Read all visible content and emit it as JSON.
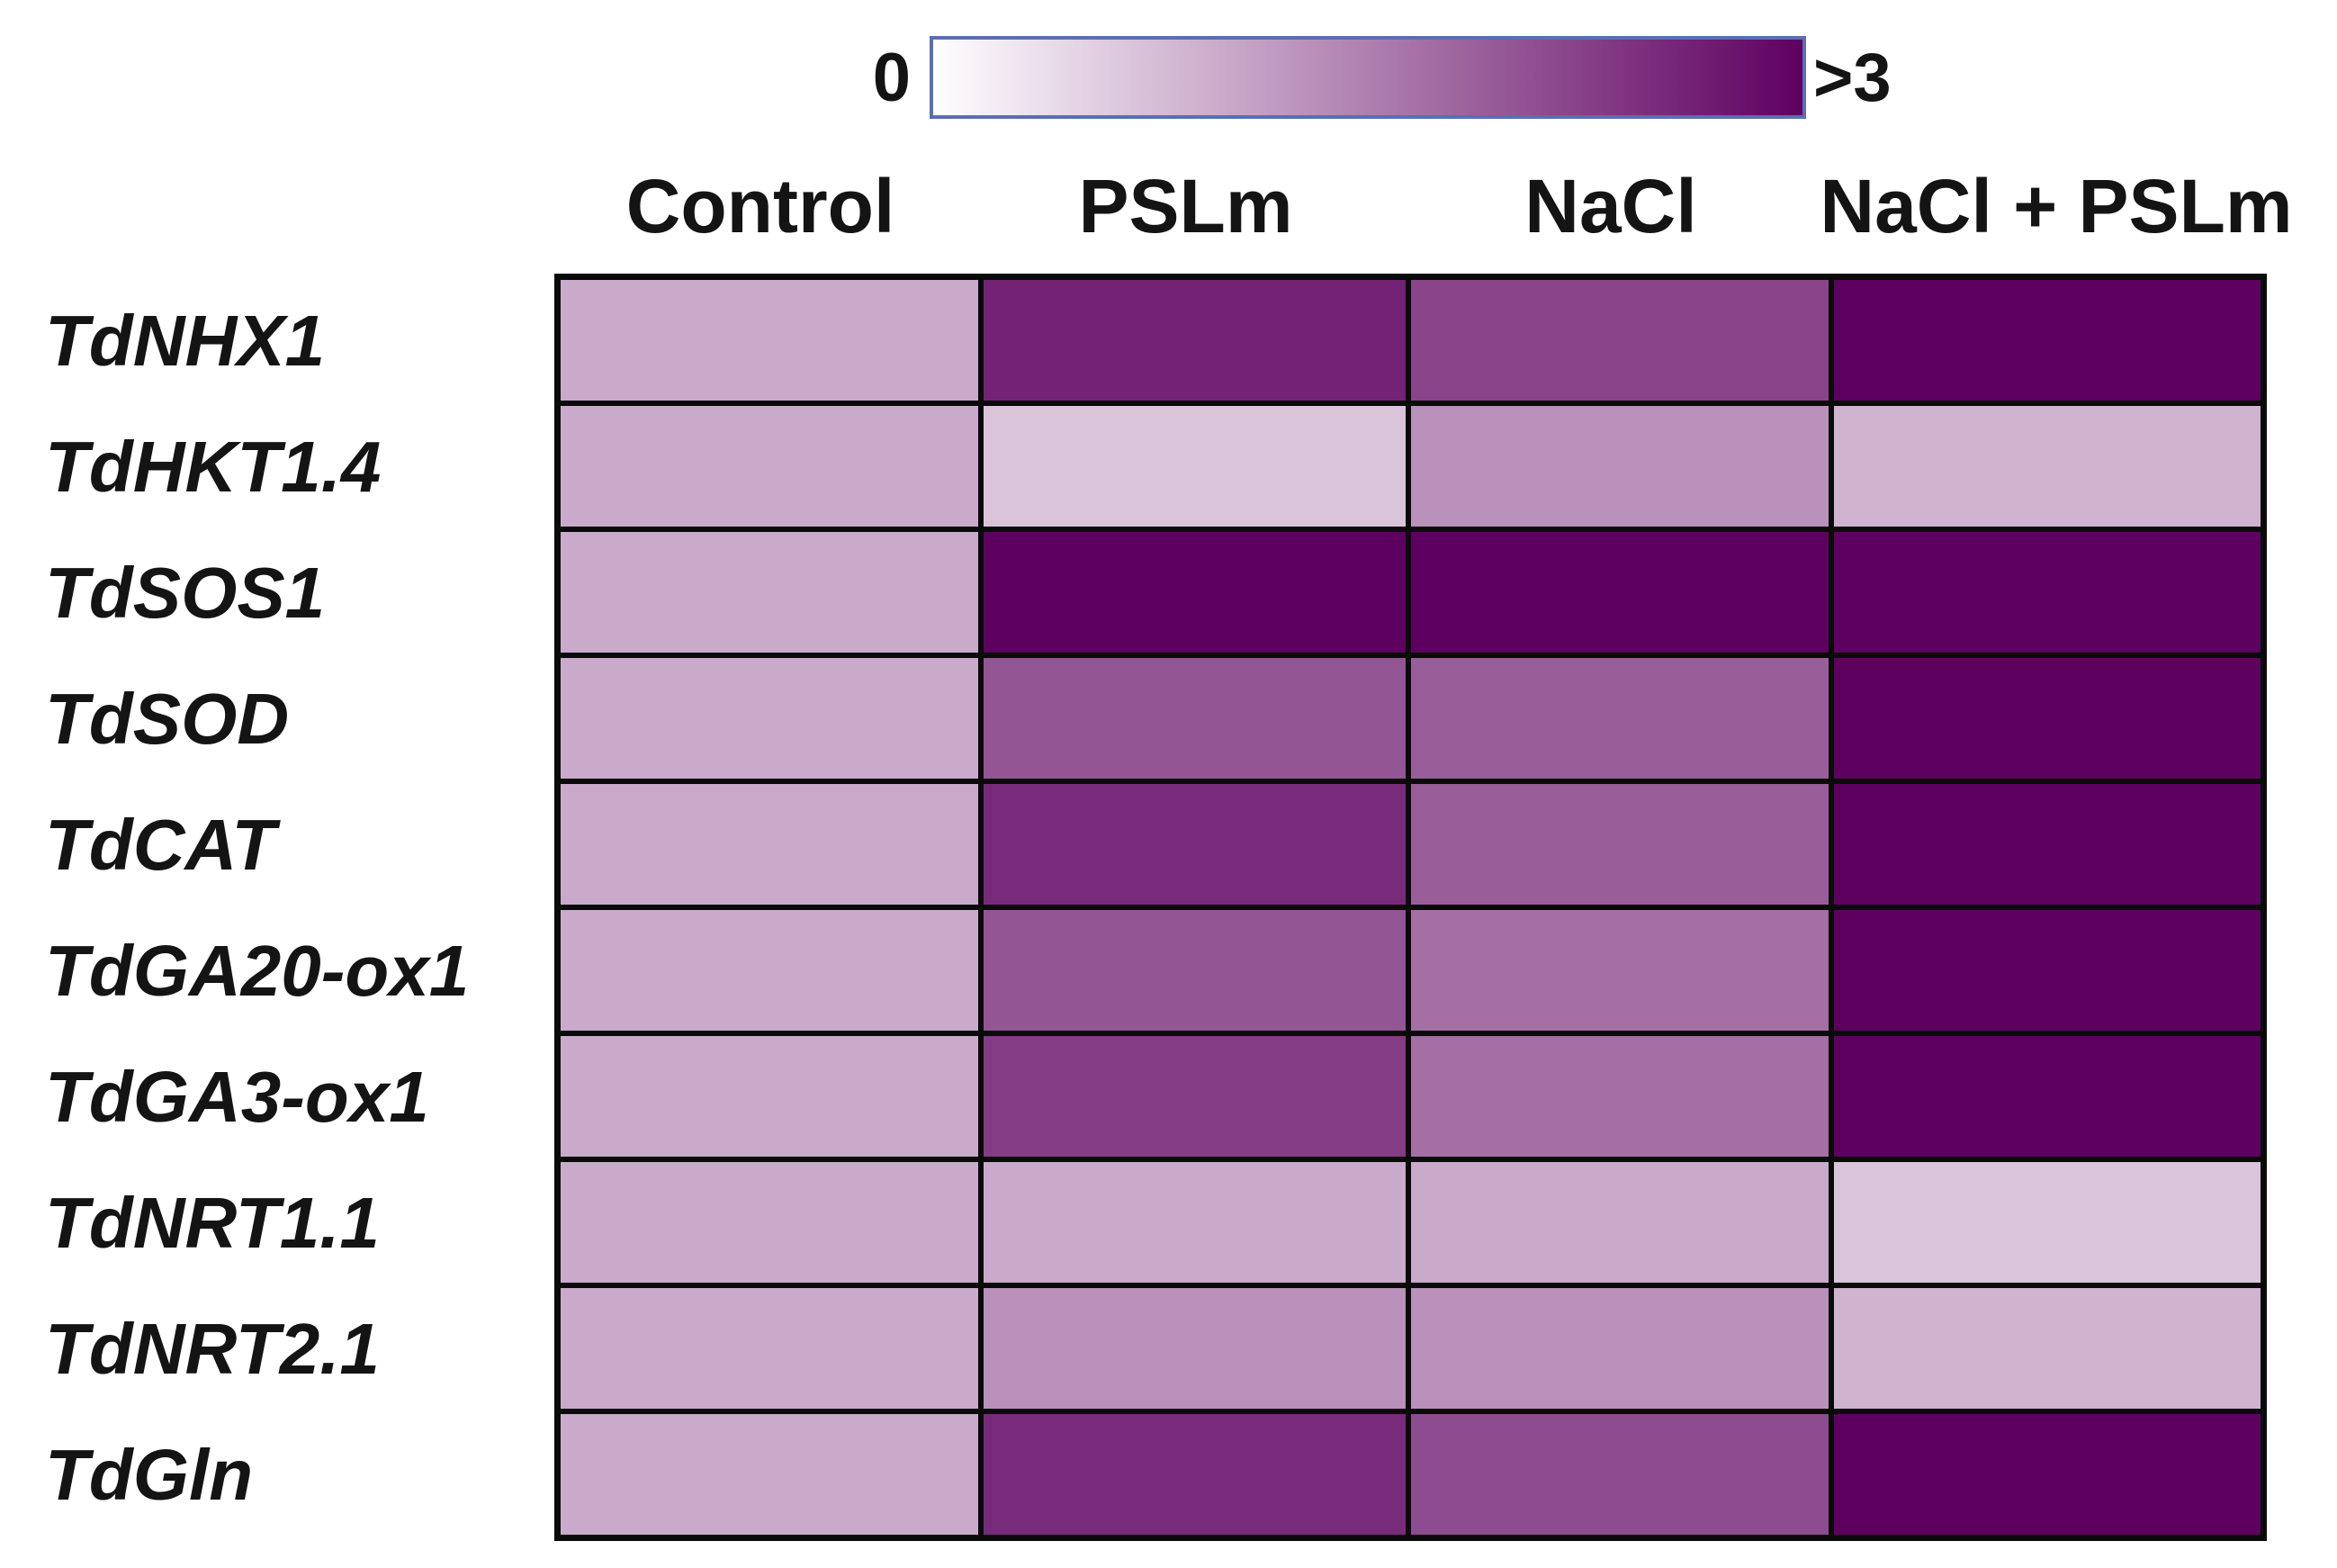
{
  "chart_data": {
    "type": "heatmap",
    "title": "",
    "xlabel": "",
    "ylabel": "",
    "categories": [
      "Control",
      "PSLm",
      "NaCl",
      "NaCl + PSLm"
    ],
    "rows": [
      "TdNHX1",
      "TdHKT1.4",
      "TdSOS1",
      "TdSOD",
      "TdCAT",
      "TdGA20-ox1",
      "TdGA3-ox1",
      "TdNRT1.1",
      "TdNRT2.1",
      "TdGln"
    ],
    "values": [
      [
        1.0,
        2.6,
        2.2,
        3.0
      ],
      [
        1.0,
        0.7,
        1.3,
        0.9
      ],
      [
        1.0,
        3.0,
        3.0,
        3.0
      ],
      [
        1.0,
        2.0,
        1.9,
        3.0
      ],
      [
        1.0,
        2.5,
        1.9,
        3.0
      ],
      [
        1.0,
        2.0,
        1.7,
        3.0
      ],
      [
        1.0,
        2.3,
        1.7,
        3.0
      ],
      [
        1.0,
        1.0,
        1.0,
        0.7
      ],
      [
        1.0,
        1.3,
        1.3,
        0.9
      ],
      [
        1.0,
        2.5,
        2.1,
        3.0
      ]
    ],
    "colorscale": {
      "min": 0,
      "max": 3,
      "min_label": "0",
      "max_label": ">3",
      "low_color": "#ffffff",
      "high_color": "#5e0060"
    },
    "grid": true,
    "legend": "top"
  }
}
